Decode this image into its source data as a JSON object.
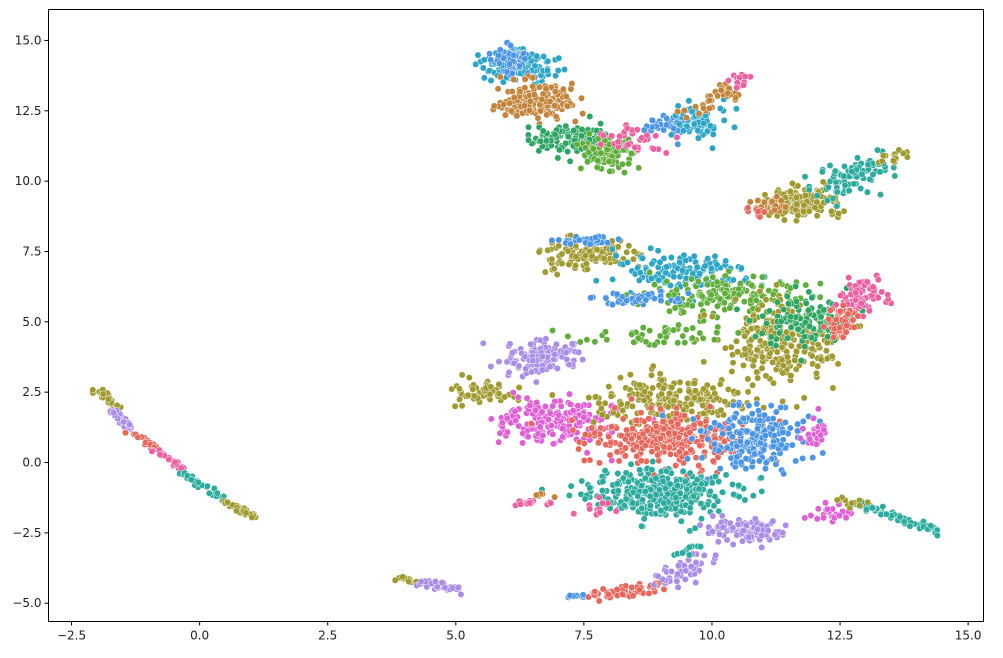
{
  "chart_data": {
    "type": "scatter",
    "title": "",
    "xlabel": "",
    "ylabel": "",
    "xlim": [
      -2.95,
      15.3
    ],
    "ylim": [
      -5.65,
      16.1
    ],
    "x_ticks": [
      -2.5,
      0.0,
      2.5,
      5.0,
      7.5,
      10.0,
      12.5,
      15.0
    ],
    "x_tick_labels": [
      "−2.5",
      "0.0",
      "2.5",
      "5.0",
      "7.5",
      "10.0",
      "12.5",
      "15.0"
    ],
    "y_ticks": [
      -5.0,
      -2.5,
      0.0,
      2.5,
      5.0,
      7.5,
      10.0,
      12.5,
      15.0
    ],
    "y_tick_labels": [
      "−5.0",
      "−2.5",
      "0.0",
      "2.5",
      "5.0",
      "7.5",
      "10.0",
      "12.5",
      "15.0"
    ],
    "grid": false,
    "legend": "none",
    "palette": [
      "#e8665a",
      "#c3843a",
      "#a09a2e",
      "#5fae3a",
      "#2ba561",
      "#2aab9e",
      "#2aa5c8",
      "#4a95e8",
      "#a98de8",
      "#e05fd6",
      "#ef5fa0"
    ],
    "clusters": [
      {
        "type": "line",
        "from": [
          -2.05,
          2.6
        ],
        "to": [
          -1.55,
          1.9
        ],
        "jitter": 0.05,
        "n": 30,
        "color": 2
      },
      {
        "type": "line",
        "from": [
          -1.75,
          1.85
        ],
        "to": [
          -1.3,
          1.2
        ],
        "jitter": 0.05,
        "n": 30,
        "color": 8
      },
      {
        "type": "line",
        "from": [
          -1.3,
          1.05
        ],
        "to": [
          -0.85,
          0.5
        ],
        "jitter": 0.05,
        "n": 25,
        "color": 0
      },
      {
        "type": "line",
        "from": [
          -0.85,
          0.45
        ],
        "to": [
          -0.35,
          -0.2
        ],
        "jitter": 0.05,
        "n": 25,
        "color": 10
      },
      {
        "type": "line",
        "from": [
          -0.4,
          -0.3
        ],
        "to": [
          0.45,
          -1.3
        ],
        "jitter": 0.05,
        "n": 35,
        "color": 5
      },
      {
        "type": "line",
        "from": [
          0.4,
          -1.3
        ],
        "to": [
          1.1,
          -1.95
        ],
        "jitter": 0.05,
        "n": 30,
        "color": 2
      },
      {
        "type": "blob",
        "cx": 6.2,
        "cy": 14.1,
        "rx": 0.6,
        "ry": 0.5,
        "n": 160,
        "color": 6
      },
      {
        "type": "blob",
        "cx": 6.1,
        "cy": 14.3,
        "rx": 0.3,
        "ry": 0.5,
        "n": 60,
        "color": 7
      },
      {
        "type": "blob",
        "cx": 6.6,
        "cy": 12.8,
        "rx": 0.7,
        "ry": 0.6,
        "n": 170,
        "color": 1
      },
      {
        "type": "blob",
        "cx": 7.3,
        "cy": 11.5,
        "rx": 0.8,
        "ry": 0.5,
        "n": 150,
        "color": 4
      },
      {
        "type": "blob",
        "cx": 7.9,
        "cy": 11.0,
        "rx": 0.5,
        "ry": 0.6,
        "n": 80,
        "color": 3
      },
      {
        "type": "blob",
        "cx": 8.5,
        "cy": 11.5,
        "rx": 0.6,
        "ry": 0.5,
        "n": 40,
        "color": 10
      },
      {
        "type": "blob",
        "cx": 9.2,
        "cy": 12.0,
        "rx": 0.5,
        "ry": 0.4,
        "n": 50,
        "color": 7
      },
      {
        "type": "blob",
        "cx": 9.8,
        "cy": 12.1,
        "rx": 0.4,
        "ry": 0.6,
        "n": 70,
        "color": 6
      },
      {
        "type": "line",
        "from": [
          9.6,
          12.4
        ],
        "to": [
          10.4,
          13.3
        ],
        "jitter": 0.15,
        "n": 35,
        "color": 1
      },
      {
        "type": "line",
        "from": [
          10.4,
          13.3
        ],
        "to": [
          10.65,
          13.75
        ],
        "jitter": 0.08,
        "n": 12,
        "color": 10
      },
      {
        "type": "blob",
        "cx": 11.7,
        "cy": 9.2,
        "rx": 0.6,
        "ry": 0.5,
        "n": 160,
        "color": 2
      },
      {
        "type": "blob",
        "cx": 11.1,
        "cy": 9.2,
        "rx": 0.3,
        "ry": 0.25,
        "n": 30,
        "color": 1
      },
      {
        "type": "line",
        "from": [
          12.2,
          9.6
        ],
        "to": [
          13.3,
          10.7
        ],
        "jitter": 0.25,
        "n": 90,
        "color": 5
      },
      {
        "type": "line",
        "from": [
          13.3,
          10.7
        ],
        "to": [
          13.8,
          11.1
        ],
        "jitter": 0.08,
        "n": 15,
        "color": 2
      },
      {
        "type": "blob",
        "cx": 10.9,
        "cy": 8.9,
        "rx": 0.2,
        "ry": 0.15,
        "n": 10,
        "color": 0
      },
      {
        "type": "blob",
        "cx": 7.7,
        "cy": 7.4,
        "rx": 0.9,
        "ry": 0.5,
        "n": 110,
        "color": 2
      },
      {
        "type": "blob",
        "cx": 7.6,
        "cy": 7.9,
        "rx": 0.5,
        "ry": 0.15,
        "n": 35,
        "color": 7
      },
      {
        "type": "blob",
        "cx": 9.4,
        "cy": 6.8,
        "rx": 1.2,
        "ry": 0.6,
        "n": 140,
        "color": 6
      },
      {
        "type": "blob",
        "cx": 10.3,
        "cy": 6.0,
        "rx": 1.4,
        "ry": 0.7,
        "n": 150,
        "color": 3
      },
      {
        "type": "blob",
        "cx": 11.3,
        "cy": 4.3,
        "rx": 1.1,
        "ry": 1.2,
        "n": 260,
        "color": 2
      },
      {
        "type": "blob",
        "cx": 11.8,
        "cy": 5.1,
        "rx": 0.8,
        "ry": 0.8,
        "n": 120,
        "color": 4
      },
      {
        "type": "blob",
        "cx": 12.9,
        "cy": 5.9,
        "rx": 0.4,
        "ry": 0.6,
        "n": 90,
        "color": 10
      },
      {
        "type": "blob",
        "cx": 12.5,
        "cy": 5.0,
        "rx": 0.3,
        "ry": 0.6,
        "n": 40,
        "color": 0
      },
      {
        "type": "blob",
        "cx": 8.6,
        "cy": 5.8,
        "rx": 1.0,
        "ry": 0.2,
        "n": 50,
        "color": 7
      },
      {
        "type": "blob",
        "cx": 9.0,
        "cy": 4.5,
        "rx": 1.5,
        "ry": 0.3,
        "n": 50,
        "color": 3
      },
      {
        "type": "blob",
        "cx": 5.5,
        "cy": 2.5,
        "rx": 0.6,
        "ry": 0.35,
        "n": 60,
        "color": 2
      },
      {
        "type": "blob",
        "cx": 6.7,
        "cy": 3.7,
        "rx": 0.7,
        "ry": 0.6,
        "n": 120,
        "color": 8
      },
      {
        "type": "blob",
        "cx": 6.9,
        "cy": 1.5,
        "rx": 1.0,
        "ry": 0.7,
        "n": 200,
        "color": 9
      },
      {
        "type": "blob",
        "cx": 9.3,
        "cy": 2.2,
        "rx": 1.5,
        "ry": 0.9,
        "n": 230,
        "color": 2
      },
      {
        "type": "blob",
        "cx": 9.2,
        "cy": 0.8,
        "rx": 1.5,
        "ry": 0.9,
        "n": 320,
        "color": 0
      },
      {
        "type": "blob",
        "cx": 10.8,
        "cy": 0.9,
        "rx": 0.9,
        "ry": 1.0,
        "n": 200,
        "color": 7
      },
      {
        "type": "blob",
        "cx": 8.9,
        "cy": -1.1,
        "rx": 1.3,
        "ry": 0.8,
        "n": 320,
        "color": 5
      },
      {
        "type": "blob",
        "cx": 10.7,
        "cy": -2.4,
        "rx": 0.7,
        "ry": 0.4,
        "n": 110,
        "color": 8
      },
      {
        "type": "blob",
        "cx": 12.0,
        "cy": 1.0,
        "rx": 0.3,
        "ry": 0.5,
        "n": 25,
        "color": 9
      },
      {
        "type": "blob",
        "cx": 12.3,
        "cy": -1.8,
        "rx": 0.4,
        "ry": 0.25,
        "n": 25,
        "color": 9
      },
      {
        "type": "line",
        "from": [
          12.8,
          -1.4
        ],
        "to": [
          14.4,
          -2.5
        ],
        "jitter": 0.08,
        "n": 60,
        "color": 5
      },
      {
        "type": "line",
        "from": [
          12.4,
          -1.3
        ],
        "to": [
          12.9,
          -1.5
        ],
        "jitter": 0.08,
        "n": 12,
        "color": 2
      },
      {
        "type": "blob",
        "cx": 6.4,
        "cy": -1.45,
        "rx": 0.3,
        "ry": 0.1,
        "n": 15,
        "color": 10
      },
      {
        "type": "blob",
        "cx": 6.6,
        "cy": -1.15,
        "rx": 0.2,
        "ry": 0.1,
        "n": 6,
        "color": 1
      },
      {
        "type": "blob",
        "cx": 7.8,
        "cy": -1.6,
        "rx": 0.3,
        "ry": 0.3,
        "n": 12,
        "color": 10
      },
      {
        "type": "line",
        "from": [
          3.8,
          -4.05
        ],
        "to": [
          4.35,
          -4.25
        ],
        "jitter": 0.05,
        "n": 15,
        "color": 2
      },
      {
        "type": "line",
        "from": [
          4.35,
          -4.25
        ],
        "to": [
          5.1,
          -4.55
        ],
        "jitter": 0.08,
        "n": 40,
        "color": 8
      },
      {
        "type": "line",
        "from": [
          7.1,
          -4.75
        ],
        "to": [
          7.6,
          -4.75
        ],
        "jitter": 0.03,
        "n": 15,
        "color": 7
      },
      {
        "type": "line",
        "from": [
          7.6,
          -4.75
        ],
        "to": [
          9.0,
          -4.4
        ],
        "jitter": 0.1,
        "n": 60,
        "color": 0
      },
      {
        "type": "line",
        "from": [
          9.0,
          -4.3
        ],
        "to": [
          9.9,
          -3.4
        ],
        "jitter": 0.15,
        "n": 50,
        "color": 8
      },
      {
        "type": "line",
        "from": [
          9.4,
          -3.3
        ],
        "to": [
          9.7,
          -2.9
        ],
        "jitter": 0.08,
        "n": 12,
        "color": 5
      }
    ]
  }
}
